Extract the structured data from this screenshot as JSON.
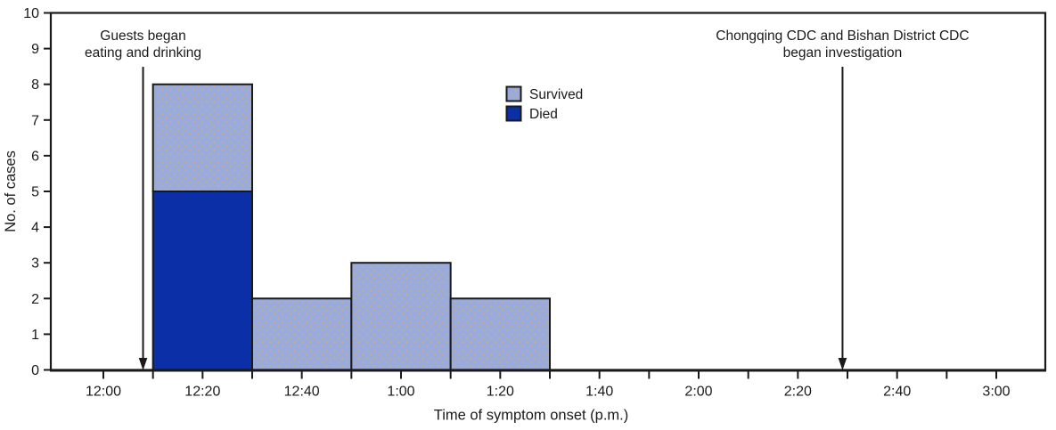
{
  "figure": {
    "background": "#ffffff",
    "line_color": "#1a1a1a"
  },
  "chart_data": {
    "type": "bar",
    "subtype": "stacked-histogram-epidemic-curve",
    "title": "",
    "xlabel": "Time of symptom onset (p.m.)",
    "ylabel": "No. of cases",
    "ylim": [
      0,
      10
    ],
    "y_ticks": [
      0,
      1,
      2,
      3,
      4,
      5,
      6,
      7,
      8,
      9,
      10
    ],
    "x_axis": {
      "unit": "minutes after 12:00 p.m.",
      "axis_range_min": [
        -10,
        190
      ],
      "minor_tick_every_min": 10,
      "minor_tick_range_min": [
        0,
        180
      ],
      "labeled_ticks": [
        {
          "label": "12:00",
          "min": 0
        },
        {
          "label": "12:20",
          "min": 20
        },
        {
          "label": "12:40",
          "min": 40
        },
        {
          "label": "1:00",
          "min": 60
        },
        {
          "label": "1:20",
          "min": 80
        },
        {
          "label": "1:40",
          "min": 100
        },
        {
          "label": "2:00",
          "min": 120
        },
        {
          "label": "2:20",
          "min": 140
        },
        {
          "label": "2:40",
          "min": 160
        },
        {
          "label": "3:00",
          "min": 180
        }
      ]
    },
    "bins": [
      {
        "label": "12:10-12:30",
        "start_min": 10,
        "end_min": 30
      },
      {
        "label": "12:30-12:50",
        "start_min": 30,
        "end_min": 50
      },
      {
        "label": "12:50-1:10",
        "start_min": 50,
        "end_min": 70
      },
      {
        "label": "1:10-1:30",
        "start_min": 70,
        "end_min": 90
      }
    ],
    "series": [
      {
        "name": "Survived",
        "color": "#9AABDB",
        "texture": "dotted",
        "dot_color": "#C8AE7E",
        "values": [
          3,
          2,
          3,
          2
        ]
      },
      {
        "name": "Died",
        "color": "#0B2FA6",
        "texture": "solid",
        "values": [
          5,
          0,
          0,
          0
        ]
      }
    ],
    "legend": {
      "position": "upper-center",
      "entries": [
        "Survived",
        "Died"
      ]
    },
    "annotations": [
      {
        "id": "guests-eating",
        "lines": [
          "Guests began",
          "eating and drinking"
        ],
        "arrow_min": 8
      },
      {
        "id": "cdc-investigation",
        "lines": [
          "Chongqing CDC and Bishan District CDC",
          "began investigation"
        ],
        "arrow_min": 149
      }
    ]
  }
}
